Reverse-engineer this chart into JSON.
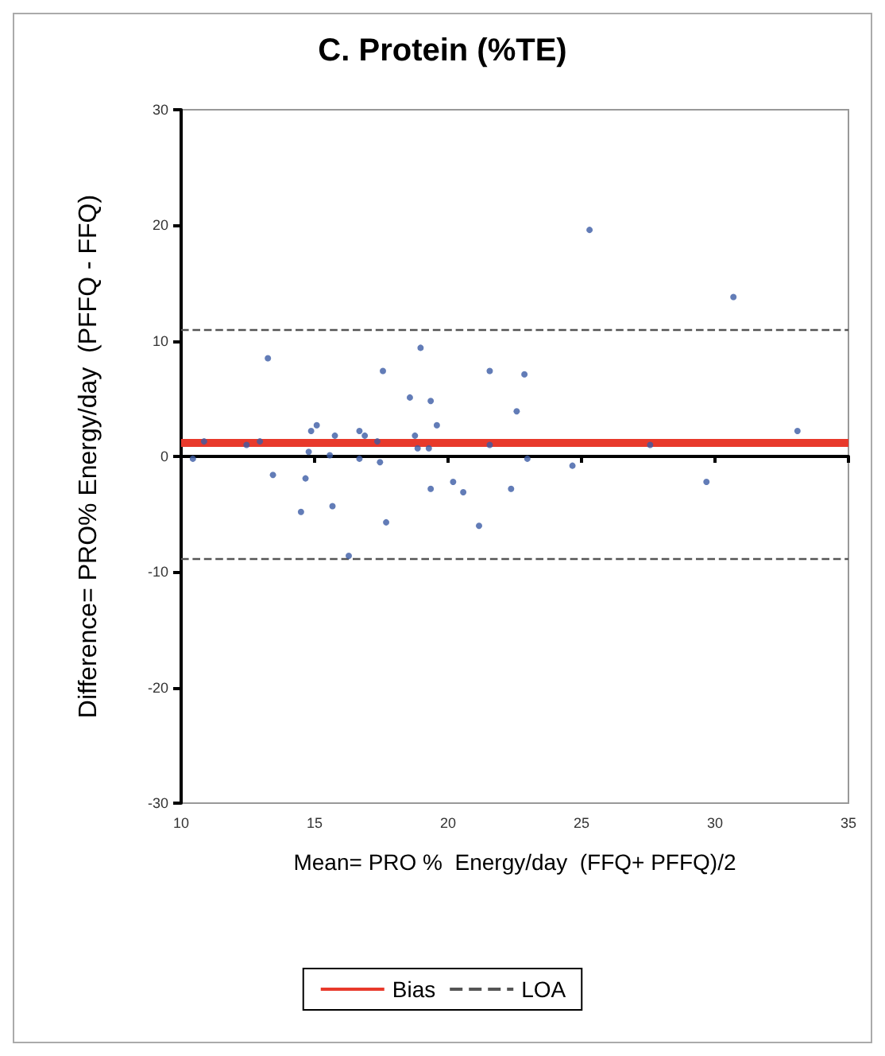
{
  "chart_data": {
    "type": "scatter",
    "title": "C. Protein (%TE)",
    "xlabel": "Mean= PRO %  Energy/day  (FFQ+ PFFQ)/2",
    "ylabel": "Difference= PRO% Energy/day  (PFFQ - FFQ)",
    "series": [
      {
        "color": "#3b5ba5",
        "x": [
          10.44,
          10.86,
          12.45,
          12.95,
          13.25,
          13.44,
          14.49,
          14.66,
          14.78,
          14.87,
          15.08,
          15.57,
          15.67,
          15.76,
          16.28,
          16.68,
          16.68,
          16.88,
          17.35,
          17.45,
          17.56,
          17.68,
          18.57,
          18.76,
          18.86,
          18.97,
          19.28,
          19.35,
          19.35,
          19.58,
          20.19,
          20.57,
          21.16,
          21.56,
          21.56,
          22.36,
          22.57,
          22.86,
          22.97,
          24.66,
          25.3,
          27.57,
          29.68,
          30.69,
          33.09
        ],
        "values": [
          -0.2,
          1.3,
          1.0,
          1.3,
          8.5,
          -1.6,
          -4.8,
          -1.9,
          0.4,
          2.2,
          2.7,
          0.1,
          -4.3,
          1.8,
          -8.6,
          2.2,
          -0.2,
          1.8,
          1.3,
          -0.5,
          7.4,
          -5.7,
          5.1,
          1.8,
          0.7,
          9.4,
          0.7,
          4.8,
          -2.8,
          2.7,
          -2.2,
          -3.1,
          -6.0,
          7.4,
          1.0,
          -2.8,
          3.9,
          7.1,
          -0.2,
          -0.8,
          19.6,
          1.0,
          -2.2,
          13.8,
          2.2
        ]
      }
    ],
    "ref_lines": [
      {
        "axis": "y",
        "value": 1.2,
        "label": "Bias",
        "color": "#e8392b",
        "line_style": "solid"
      },
      {
        "axis": "y",
        "value": 11.0,
        "label": "LOA",
        "color": "#555555",
        "line_style": "dashed"
      },
      {
        "axis": "y",
        "value": -8.85,
        "color": "#555555",
        "line_style": "dashed"
      }
    ],
    "xlim": [
      10,
      35
    ],
    "xticks": [
      10,
      15,
      20,
      25,
      30,
      35
    ],
    "ylim": [
      -30,
      30
    ],
    "yticks": [
      -30,
      -20,
      -10,
      0,
      10,
      20,
      30
    ],
    "legend": "bottom",
    "marker": "circle"
  }
}
